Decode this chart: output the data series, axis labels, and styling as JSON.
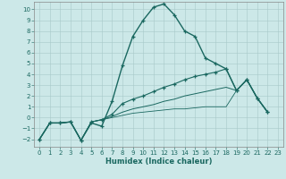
{
  "xlabel": "Humidex (Indice chaleur)",
  "bg_color": "#cce8e8",
  "line_color": "#1a6860",
  "xlim": [
    -0.5,
    23.5
  ],
  "ylim": [
    -2.7,
    10.7
  ],
  "xticks": [
    0,
    1,
    2,
    3,
    4,
    5,
    6,
    7,
    8,
    9,
    10,
    11,
    12,
    13,
    14,
    15,
    16,
    17,
    18,
    19,
    20,
    21,
    22,
    23
  ],
  "yticks": [
    -2,
    -1,
    0,
    1,
    2,
    3,
    4,
    5,
    6,
    7,
    8,
    9,
    10
  ],
  "lines": [
    {
      "x": [
        0,
        1,
        2,
        3,
        4,
        5,
        6,
        7,
        8,
        9,
        10,
        11,
        12,
        13,
        14,
        15,
        16,
        17,
        18,
        19,
        20,
        21,
        22
      ],
      "y": [
        -2.0,
        -0.5,
        -0.5,
        -0.4,
        -2.1,
        -0.5,
        -0.8,
        1.5,
        4.8,
        7.5,
        9.0,
        10.2,
        10.5,
        9.5,
        8.0,
        7.5,
        5.5,
        5.0,
        4.5,
        2.5,
        3.5,
        1.8,
        0.5
      ],
      "lw": 1.0,
      "marker": true
    },
    {
      "x": [
        0,
        1,
        2,
        3,
        4,
        5,
        6,
        7,
        8,
        9,
        10,
        11,
        12,
        13,
        14,
        15,
        16,
        17,
        18,
        19,
        20,
        21,
        22
      ],
      "y": [
        -2.0,
        -0.5,
        -0.5,
        -0.4,
        -2.1,
        -0.4,
        -0.2,
        0.3,
        1.3,
        1.7,
        2.0,
        2.4,
        2.8,
        3.1,
        3.5,
        3.8,
        4.0,
        4.2,
        4.5,
        2.5,
        3.5,
        1.8,
        0.5
      ],
      "lw": 0.8,
      "marker": true
    },
    {
      "x": [
        0,
        1,
        2,
        3,
        4,
        5,
        6,
        7,
        8,
        9,
        10,
        11,
        12,
        13,
        14,
        15,
        16,
        17,
        18,
        19,
        20,
        21,
        22
      ],
      "y": [
        -2.0,
        -0.5,
        -0.5,
        -0.4,
        -2.1,
        -0.4,
        -0.2,
        0.1,
        0.5,
        0.8,
        1.0,
        1.2,
        1.5,
        1.7,
        2.0,
        2.2,
        2.4,
        2.6,
        2.8,
        2.5,
        3.5,
        1.8,
        0.5
      ],
      "lw": 0.7,
      "marker": false
    },
    {
      "x": [
        0,
        1,
        2,
        3,
        4,
        5,
        6,
        7,
        8,
        9,
        10,
        11,
        12,
        13,
        14,
        15,
        16,
        17,
        18,
        19,
        20,
        21,
        22
      ],
      "y": [
        -2.0,
        -0.5,
        -0.5,
        -0.4,
        -2.1,
        -0.4,
        -0.2,
        0.0,
        0.2,
        0.4,
        0.5,
        0.6,
        0.7,
        0.8,
        0.8,
        0.9,
        1.0,
        1.0,
        1.0,
        2.5,
        3.5,
        1.8,
        0.5
      ],
      "lw": 0.6,
      "marker": false
    }
  ]
}
